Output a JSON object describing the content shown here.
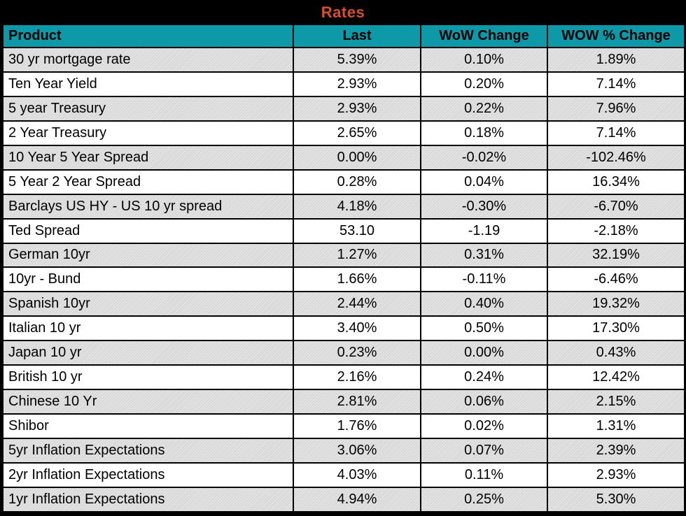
{
  "title": "Rates",
  "colors": {
    "title_bg": "#000000",
    "title_text": "#D6502D",
    "header_bg": "#0D99A8",
    "row_alt_bg": "#DCDCDC",
    "row_bg": "#FFFFFF",
    "border": "#000000",
    "text": "#000000"
  },
  "table": {
    "columns": [
      {
        "key": "product",
        "label": "Product"
      },
      {
        "key": "last",
        "label": "Last"
      },
      {
        "key": "wow_change",
        "label": "WoW Change"
      },
      {
        "key": "wow_pct_change",
        "label": "WOW % Change"
      }
    ],
    "rows": [
      {
        "product": "30 yr mortgage rate",
        "last": "5.39%",
        "wow_change": "0.10%",
        "wow_pct_change": "1.89%"
      },
      {
        "product": "Ten Year Yield",
        "last": "2.93%",
        "wow_change": "0.20%",
        "wow_pct_change": "7.14%"
      },
      {
        "product": "5 year Treasury",
        "last": "2.93%",
        "wow_change": "0.22%",
        "wow_pct_change": "7.96%"
      },
      {
        "product": "2 Year Treasury",
        "last": "2.65%",
        "wow_change": "0.18%",
        "wow_pct_change": "7.14%"
      },
      {
        "product": "10 Year 5 Year Spread",
        "last": "0.00%",
        "wow_change": "-0.02%",
        "wow_pct_change": "-102.46%"
      },
      {
        "product": "5 Year 2 Year Spread",
        "last": "0.28%",
        "wow_change": "0.04%",
        "wow_pct_change": "16.34%"
      },
      {
        "product": "Barclays US HY - US 10 yr spread",
        "last": "4.18%",
        "wow_change": "-0.30%",
        "wow_pct_change": "-6.70%"
      },
      {
        "product": "Ted Spread",
        "last": "53.10",
        "wow_change": "-1.19",
        "wow_pct_change": "-2.18%"
      },
      {
        "product": "German 10yr",
        "last": "1.27%",
        "wow_change": "0.31%",
        "wow_pct_change": "32.19%"
      },
      {
        "product": "10yr - Bund",
        "last": "1.66%",
        "wow_change": "-0.11%",
        "wow_pct_change": "-6.46%"
      },
      {
        "product": "Spanish 10yr",
        "last": "2.44%",
        "wow_change": "0.40%",
        "wow_pct_change": "19.32%"
      },
      {
        "product": "Italian 10 yr",
        "last": "3.40%",
        "wow_change": "0.50%",
        "wow_pct_change": "17.30%"
      },
      {
        "product": "Japan 10 yr",
        "last": "0.23%",
        "wow_change": "0.00%",
        "wow_pct_change": "0.43%"
      },
      {
        "product": "British 10 yr",
        "last": "2.16%",
        "wow_change": "0.24%",
        "wow_pct_change": "12.42%"
      },
      {
        "product": "Chinese 10 Yr",
        "last": "2.81%",
        "wow_change": "0.06%",
        "wow_pct_change": "2.15%"
      },
      {
        "product": "Shibor",
        "last": "1.76%",
        "wow_change": "0.02%",
        "wow_pct_change": "1.31%"
      },
      {
        "product": "5yr Inflation Expectations",
        "last": "3.06%",
        "wow_change": "0.07%",
        "wow_pct_change": "2.39%"
      },
      {
        "product": "2yr Inflation Expectations",
        "last": "4.03%",
        "wow_change": "0.11%",
        "wow_pct_change": "2.93%"
      },
      {
        "product": "1yr Inflation Expectations",
        "last": "4.94%",
        "wow_change": "0.25%",
        "wow_pct_change": "5.30%"
      }
    ]
  }
}
